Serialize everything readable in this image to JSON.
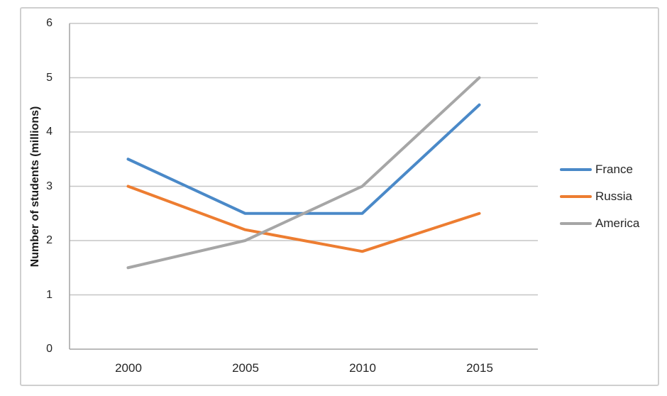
{
  "chart_data": {
    "type": "line",
    "title": "",
    "xlabel": "",
    "ylabel": "Number of students (millions)",
    "categories": [
      "2000",
      "2005",
      "2010",
      "2015"
    ],
    "series": [
      {
        "name": "France",
        "color": "#4A89C8",
        "values": [
          3.5,
          2.5,
          2.5,
          4.5
        ]
      },
      {
        "name": "Russia",
        "color": "#ED7D31",
        "values": [
          3.0,
          2.2,
          1.8,
          2.5
        ]
      },
      {
        "name": "America",
        "color": "#A6A6A6",
        "values": [
          1.5,
          2.0,
          3.0,
          5.0
        ]
      }
    ],
    "ylim": [
      0,
      6
    ],
    "y_tick_step": 1,
    "y_ticks_top_to_bottom": [
      "6",
      "5",
      "4",
      "3",
      "2",
      "1",
      "0"
    ],
    "grid": true,
    "legend_position": "right"
  },
  "colors": {
    "gridline": "#C6C6C6",
    "axis_line": "#A3A3A3",
    "tick_text": "#262626",
    "chart_border": "#CFCFCF",
    "background": "#FFFFFF"
  }
}
